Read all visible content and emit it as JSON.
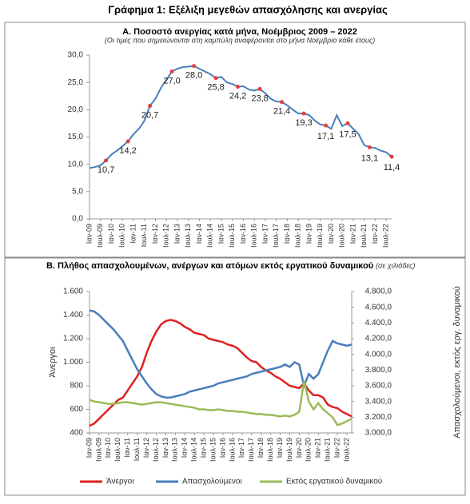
{
  "title": "Γράφημα 1: Εξέλιξη μεγεθών απασχόλησης και ανεργίας",
  "chart_data": [
    {
      "type": "line",
      "title": "Α. Ποσοστό ανεργίας κατά μήνα, Νοέμβριος 2009 – 2022",
      "subtitle": "(Οι τιμές που σημειώνονται στη καμπύλη αναφέρονται στο μήνα Νοέμβριο κάθε έτους)",
      "categories": [
        "Ιαν-09",
        null,
        "Ιουλ-09",
        null,
        "Ιαν-10",
        null,
        "Ιουλ-10",
        null,
        "Ιαν-11",
        null,
        "Ιουλ-11",
        null,
        "Ιαν-12",
        null,
        "Ιουλ-12",
        null,
        "Ιαν-13",
        null,
        "Ιουλ-13",
        null,
        "Ιαν-14",
        null,
        "Ιουλ-14",
        null,
        "Ιαν-15",
        null,
        "Ιουλ-15",
        null,
        "Ιαν-16",
        null,
        "Ιουλ-16",
        null,
        "Ιαν-17",
        null,
        "Ιουλ-17",
        null,
        "Ιαν-18",
        null,
        "Ιουλ-18",
        null,
        "Ιαν-19",
        null,
        "Ιουλ-19",
        null,
        "Ιαν-20",
        null,
        "Ιουλ-20",
        null,
        "Ιαν-21",
        null,
        "Ιουλ-21",
        null,
        "Ιαν-22",
        null,
        "Ιουλ-22",
        null
      ],
      "series": [
        {
          "color": "#4a7ebb",
          "marker_color": "#e04040",
          "values": [
            9.3,
            9.5,
            9.8,
            10.7,
            11.8,
            12.5,
            13.3,
            14.2,
            15.5,
            16.5,
            18.0,
            20.7,
            22.0,
            24.0,
            25.5,
            27.0,
            27.5,
            27.8,
            27.9,
            28.0,
            27.5,
            27.0,
            26.5,
            25.8,
            26.0,
            25.0,
            24.7,
            24.2,
            24.3,
            23.7,
            23.5,
            23.8,
            23.0,
            22.0,
            21.5,
            21.4,
            20.8,
            20.0,
            19.3,
            19.3,
            19.0,
            18.0,
            17.3,
            17.1,
            16.5,
            19.0,
            17.0,
            17.5,
            16.5,
            15.5,
            13.5,
            13.1,
            13.0,
            12.5,
            12.2,
            11.4
          ],
          "value_labels": [
            null,
            null,
            null,
            "10,7",
            null,
            null,
            null,
            "14,2",
            null,
            null,
            null,
            "20,7",
            null,
            null,
            null,
            "27,0",
            null,
            null,
            null,
            "28,0",
            null,
            null,
            null,
            "25,8",
            null,
            null,
            null,
            "24,2",
            null,
            null,
            null,
            "23,8",
            null,
            null,
            null,
            "21,4",
            null,
            null,
            null,
            "19,3",
            null,
            null,
            null,
            "17,1",
            null,
            null,
            null,
            "17,5",
            null,
            null,
            null,
            "13,1",
            null,
            null,
            null,
            "11,4"
          ]
        }
      ],
      "ylim": [
        0,
        30
      ],
      "yticks": [
        {
          "value": 0,
          "label": "0,0"
        },
        {
          "value": 5,
          "label": "5,0"
        },
        {
          "value": 10,
          "label": "10,0"
        },
        {
          "value": 15,
          "label": "15,0"
        },
        {
          "value": 20,
          "label": "20,0"
        },
        {
          "value": 25,
          "label": "25,0"
        },
        {
          "value": 30,
          "label": "30,0"
        }
      ]
    },
    {
      "type": "line",
      "title": "Β. Πλήθος απασχολουμένων, ανέργων και ατόμων εκτός εργατικού δυναμικού",
      "subtitle": "(σε χιλιάδες)",
      "ylabel": "Άνεργοι",
      "y2label": "Απασχολούμενοι, εκτός εργ. δυναμικού",
      "categories": [
        "Ιαν-09",
        null,
        "Ιουλ-09",
        null,
        "Ιαν-10",
        null,
        "Ιουλ-10",
        null,
        "Ιαν-11",
        null,
        "Ιουλ-11",
        null,
        "Ιαν-12",
        null,
        "Ιουλ-12",
        null,
        "Ιαν-13",
        null,
        "Ιουλ-13",
        null,
        "Ιαν-14",
        null,
        "Ιουλ-14",
        null,
        "Ιαν-15",
        null,
        "Ιουλ-15",
        null,
        "Ιαν-16",
        null,
        "Ιουλ-16",
        null,
        "Ιαν-17",
        null,
        "Ιουλ-17",
        null,
        "Ιαν-18",
        null,
        "Ιουλ-18",
        null,
        "Ιαν-19",
        null,
        "Ιουλ-19",
        null,
        "Ιαν-20",
        null,
        "Ιουλ-20",
        null,
        "Ιαν-21",
        null,
        "Ιουλ-21",
        null,
        "Ιαν-22",
        null,
        "Ιουλ-22",
        null
      ],
      "series": [
        {
          "name": "Άνεργοι",
          "color": "#e02020",
          "values": [
            460,
            480,
            520,
            560,
            600,
            640,
            680,
            700,
            760,
            820,
            880,
            960,
            1080,
            1180,
            1260,
            1320,
            1350,
            1360,
            1350,
            1330,
            1300,
            1280,
            1250,
            1240,
            1230,
            1200,
            1190,
            1180,
            1170,
            1150,
            1140,
            1120,
            1080,
            1040,
            1010,
            1000,
            960,
            930,
            910,
            880,
            860,
            830,
            800,
            790,
            780,
            820,
            760,
            720,
            720,
            700,
            640,
            620,
            610,
            580,
            560,
            540
          ]
        },
        {
          "name": "Απασχολούμενοι",
          "color": "#4a7ebb",
          "axis": "y2",
          "values": [
            4560,
            4545,
            4500,
            4440,
            4380,
            4320,
            4245,
            4170,
            4050,
            3930,
            3810,
            3720,
            3630,
            3555,
            3495,
            3465,
            3450,
            3450,
            3465,
            3480,
            3495,
            3525,
            3540,
            3555,
            3570,
            3585,
            3600,
            3630,
            3645,
            3660,
            3675,
            3690,
            3705,
            3720,
            3750,
            3765,
            3780,
            3795,
            3810,
            3825,
            3840,
            3870,
            3840,
            3900,
            3870,
            3600,
            3750,
            3690,
            3750,
            3900,
            4050,
            4170,
            4140,
            4125,
            4110,
            4125
          ]
        },
        {
          "name": "Εκτός εργατικού δυναμικού",
          "color": "#9bbb59",
          "axis": "y2",
          "values": [
            3420,
            3400,
            3390,
            3380,
            3370,
            3370,
            3380,
            3390,
            3390,
            3380,
            3370,
            3360,
            3370,
            3380,
            3390,
            3390,
            3380,
            3370,
            3360,
            3350,
            3340,
            3330,
            3320,
            3300,
            3300,
            3290,
            3290,
            3300,
            3290,
            3280,
            3280,
            3270,
            3270,
            3260,
            3250,
            3240,
            3240,
            3230,
            3230,
            3220,
            3210,
            3220,
            3210,
            3230,
            3270,
            3660,
            3400,
            3300,
            3380,
            3300,
            3250,
            3200,
            3100,
            3120,
            3150,
            3180
          ]
        }
      ],
      "ylim": [
        400,
        1600
      ],
      "yticks": [
        400,
        600,
        800,
        {
          "value": 1000,
          "label": "1.000"
        },
        {
          "value": 1200,
          "label": "1.200"
        },
        {
          "value": 1400,
          "label": "1.400"
        },
        {
          "value": 1600,
          "label": "1.600"
        }
      ],
      "y2lim": [
        3000,
        4800
      ],
      "y2ticks": [
        {
          "value": 3000,
          "label": "3.000,0"
        },
        {
          "value": 3200,
          "label": "3.200,0"
        },
        {
          "value": 3400,
          "label": "3.400,0"
        },
        {
          "value": 3600,
          "label": "3.600,0"
        },
        {
          "value": 3800,
          "label": "3.800,0"
        },
        {
          "value": 4000,
          "label": "4.000,0"
        },
        {
          "value": 4200,
          "label": "4.200,0"
        },
        {
          "value": 4400,
          "label": "4.400,0"
        },
        {
          "value": 4600,
          "label": "4.600,0"
        },
        {
          "value": 4800,
          "label": "4.800,0"
        }
      ]
    }
  ]
}
